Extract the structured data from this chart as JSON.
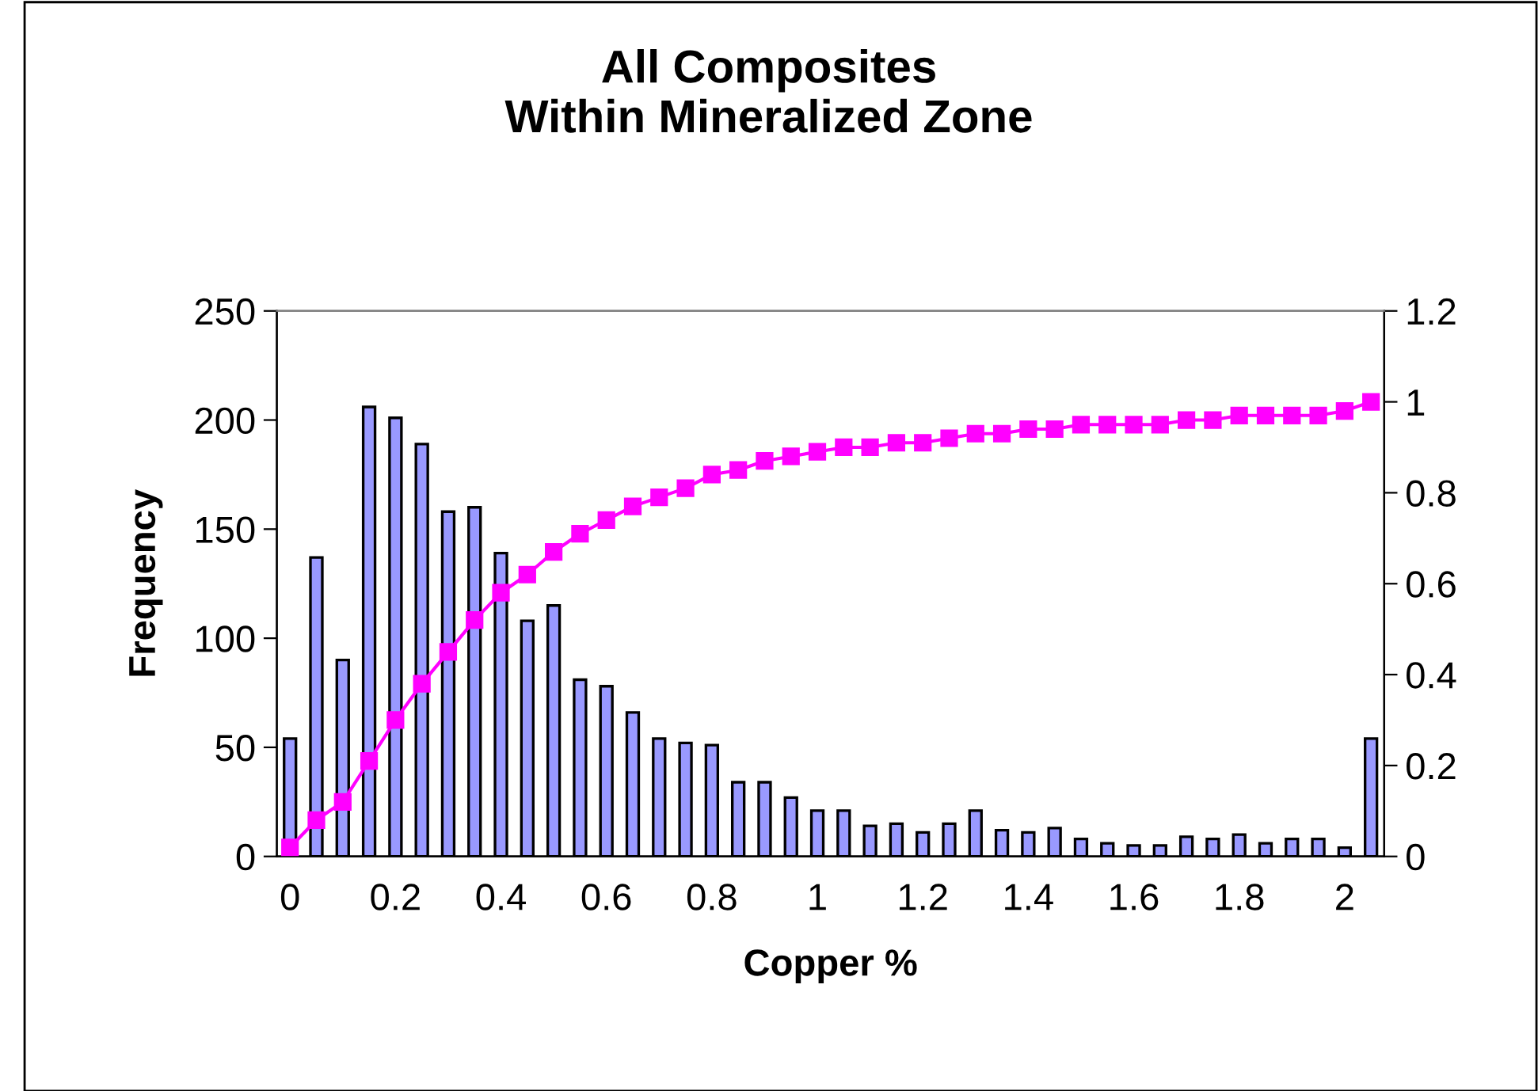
{
  "chart_data": {
    "type": "bar",
    "title": "All Composites\nWithin Mineralized Zone",
    "xlabel": "Copper %",
    "ylabel": "Frequency",
    "categories": [
      "0",
      null,
      null,
      null,
      "0.2",
      null,
      null,
      null,
      "0.4",
      null,
      null,
      null,
      "0.6",
      null,
      null,
      null,
      "0.8",
      null,
      null,
      null,
      "1",
      null,
      null,
      null,
      "1.2",
      null,
      null,
      null,
      "1.4",
      null,
      null,
      null,
      "1.6",
      null,
      null,
      null,
      "1.8",
      null,
      null,
      null,
      "2",
      null
    ],
    "series": [
      {
        "color": "#9999ff",
        "values": [
          54,
          137,
          90,
          206,
          201,
          189,
          158,
          160,
          139,
          108,
          115,
          81,
          78,
          66,
          54,
          52,
          51,
          34,
          34,
          27,
          21,
          21,
          14,
          15,
          11,
          15,
          21,
          12,
          11,
          13,
          8,
          6,
          5,
          5,
          9,
          8,
          10,
          6,
          8,
          8,
          4,
          54
        ]
      },
      {
        "type": "line",
        "axis": "y2",
        "color": "#ff00ff",
        "marker": "square",
        "line_style": "solid",
        "values": [
          0.02,
          0.08,
          0.12,
          0.21,
          0.3,
          0.38,
          0.45,
          0.52,
          0.58,
          0.62,
          0.67,
          0.71,
          0.74,
          0.77,
          0.79,
          0.81,
          0.84,
          0.85,
          0.87,
          0.88,
          0.89,
          0.9,
          0.9,
          0.91,
          0.91,
          0.92,
          0.93,
          0.93,
          0.94,
          0.94,
          0.95,
          0.95,
          0.95,
          0.95,
          0.96,
          0.96,
          0.97,
          0.97,
          0.97,
          0.97,
          0.98,
          1.0
        ]
      }
    ],
    "ylim": [
      0,
      250
    ],
    "yticks": [
      0,
      50,
      100,
      150,
      200,
      250
    ],
    "y2lim": [
      0,
      1.2
    ],
    "y2ticks": [
      0,
      0.2,
      0.4,
      0.6,
      0.8,
      1,
      1.2
    ],
    "grid": false,
    "legend": false
  }
}
